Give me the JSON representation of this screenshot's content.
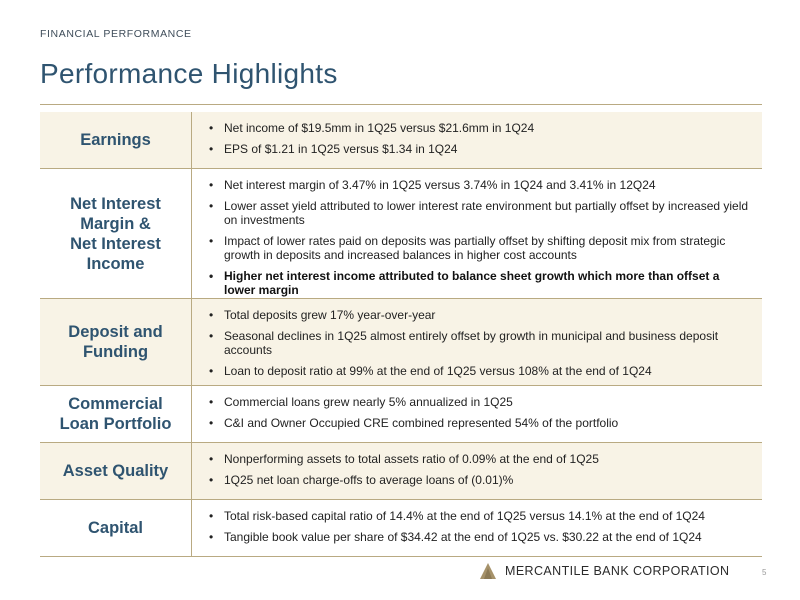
{
  "header": {
    "eyebrow": "FINANCIAL PERFORMANCE",
    "title": "Performance Highlights"
  },
  "sections": [
    {
      "label": "Earnings",
      "bullets": [
        "Net income of $19.5mm in 1Q25 versus $21.6mm in 1Q24",
        "EPS of $1.21 in 1Q25 versus $1.34 in 1Q24"
      ]
    },
    {
      "label": "Net Interest\nMargin &\nNet Interest\nIncome",
      "bullets": [
        "Net interest margin of 3.47% in 1Q25 versus 3.74% in 1Q24 and 3.41% in 12Q24",
        "Lower asset yield attributed to lower interest rate environment but partially offset by increased yield on investments",
        "Impact of lower rates paid on deposits was partially offset by shifting deposit mix from strategic growth in deposits and increased balances in higher cost accounts",
        "Higher net interest income attributed to balance sheet growth which more than offset a lower margin"
      ]
    },
    {
      "label": "Deposit and\nFunding",
      "bullets": [
        "Total deposits grew 17% year-over-year",
        "Seasonal declines in 1Q25 almost entirely offset by growth in municipal and business deposit accounts",
        "Loan to deposit ratio at 99% at the end of 1Q25 versus 108% at the end of 1Q24"
      ]
    },
    {
      "label": "Commercial\nLoan Portfolio",
      "bullets": [
        "Commercial loans grew nearly 5% annualized in 1Q25",
        "C&I and Owner Occupied CRE combined represented 54% of the portfolio"
      ]
    },
    {
      "label": "Asset Quality",
      "bullets": [
        "Nonperforming assets to total assets ratio of 0.09% at the end of 1Q25",
        "1Q25 net loan charge-offs to average loans of (0.01)%"
      ]
    },
    {
      "label": "Capital",
      "bullets": [
        "Total risk-based capital ratio of 14.4% at the end of 1Q25 versus 14.1% at the end of 1Q24",
        "Tangible book value per share of $34.42 at the end of 1Q25 vs. $30.22 at the end of 1Q24"
      ]
    }
  ],
  "footer": {
    "company": "MERCANTILE BANK CORPORATION",
    "page_number": "5",
    "logo_icon": "triangle-logo-icon"
  },
  "colors": {
    "accent_blue": "#2f5470",
    "rule_gold": "#b9aa82",
    "row_shade": "#f8f3e6",
    "logo_gold": "#a6926a"
  }
}
